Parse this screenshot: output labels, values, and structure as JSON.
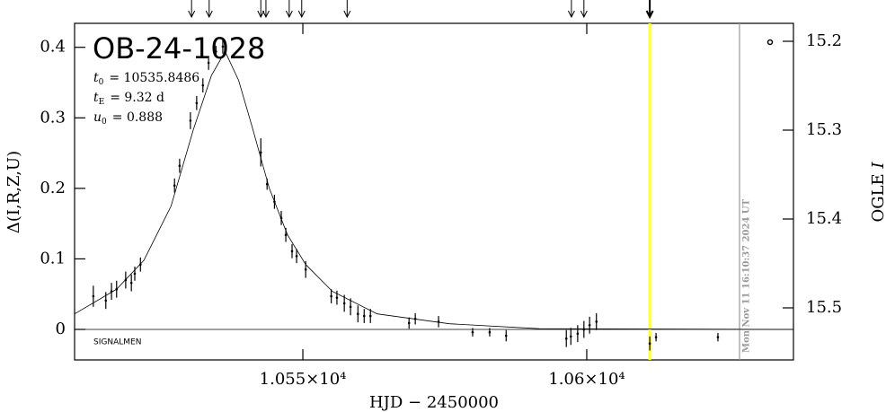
{
  "chart_data": {
    "type": "scatter",
    "title": "OB-24-1028",
    "params": [
      {
        "symbol": "t",
        "subscript": "0",
        "value": "= 10535.8486"
      },
      {
        "symbol": "t",
        "subscript": "E",
        "value": "= 9.32 d"
      },
      {
        "symbol": "u",
        "subscript": "0",
        "value": "= 0.888"
      }
    ],
    "note": "SIGNALMEN",
    "timestamp": "Mon Nov 11 16:10:37 2024 UT",
    "x_label": "HJD − 2450000",
    "y_label": "Δ(I,R,Z,U)",
    "y2_label": "OGLE",
    "y2_label_italic": "I",
    "xlim": [
      10509.8,
      10636.4
    ],
    "ylim": [
      -0.0433,
      0.434
    ],
    "y2lim": [
      15.5586,
      15.1798
    ],
    "xticks": [
      {
        "value": 10550,
        "label": "1.055×10⁴"
      },
      {
        "value": 10600,
        "label": "1.06×10⁴"
      }
    ],
    "yticks": [
      0,
      0.1,
      0.2,
      0.3,
      0.4
    ],
    "y2ticks": [
      15.2,
      15.3,
      15.4,
      15.5
    ],
    "highlight_x": 10611.1,
    "highlight_color": "#ffff33",
    "now_x": 10626.9,
    "now_color": "#999999",
    "arrows_x": [
      10530.4,
      10533.5,
      10542.6,
      10543.5,
      10547.6,
      10549.8,
      10557.8,
      10597.3,
      10599.5,
      10611.1
    ],
    "series": [
      {
        "style": "errorbar",
        "color": "#000000",
        "x": [
          10513.1,
          10515.3,
          10516.3,
          10517.2,
          10518.8,
          10519.8,
          10520.4,
          10521.4,
          10527.4,
          10528.3,
          10530.2,
          10531.3,
          10532.4,
          10533.4,
          10534.7,
          10535.9,
          10542.6,
          10543.7,
          10545,
          10546.2,
          10547,
          10548.1,
          10548.9,
          10550.5,
          10555,
          10556,
          10557.3,
          10558.4,
          10559.7,
          10560.8,
          10561.9,
          10568.7,
          10569.8,
          10573.9,
          10579.9,
          10582.9,
          10585.8,
          10596.4,
          10597.2,
          10598.4,
          10599.5,
          10600.5,
          10601.7,
          10611.1,
          10612.2,
          10623.1
        ],
        "values": [
          0.047,
          0.041,
          0.054,
          0.057,
          0.07,
          0.066,
          0.079,
          0.092,
          0.204,
          0.232,
          0.296,
          0.321,
          0.346,
          0.378,
          0.394,
          0.401,
          0.251,
          0.206,
          0.181,
          0.158,
          0.134,
          0.111,
          0.104,
          0.085,
          0.047,
          0.045,
          0.037,
          0.032,
          0.022,
          0.019,
          0.019,
          0.009,
          0.015,
          0.011,
          -0.004,
          -0.004,
          -0.009,
          -0.013,
          -0.01,
          -0.006,
          0,
          0.006,
          0.011,
          -0.02,
          -0.011,
          -0.011
        ],
        "errors": [
          0.015,
          0.012,
          0.012,
          0.012,
          0.012,
          0.012,
          0.01,
          0.01,
          0.01,
          0.01,
          0.012,
          0.01,
          0.01,
          0.01,
          0.008,
          0.01,
          0.02,
          0.008,
          0.01,
          0.01,
          0.01,
          0.01,
          0.01,
          0.012,
          0.01,
          0.01,
          0.012,
          0.012,
          0.012,
          0.01,
          0.01,
          0.008,
          0.008,
          0.008,
          0.006,
          0.006,
          0.008,
          0.012,
          0.012,
          0.012,
          0.012,
          0.012,
          0.012,
          0.01,
          0.006,
          0.006
        ]
      },
      {
        "style": "line",
        "color": "#000000",
        "x": [
          10509.8,
          10517.2,
          10522,
          10526.8,
          10530.7,
          10533.9,
          10536.3,
          10538.7,
          10541,
          10544.1,
          10547.3,
          10550.5,
          10555.2,
          10563.1,
          10575.8,
          10591.6,
          10636.4
        ],
        "values": [
          0.022,
          0.057,
          0.098,
          0.175,
          0.283,
          0.36,
          0.394,
          0.353,
          0.289,
          0.2,
          0.134,
          0.092,
          0.054,
          0.022,
          0.008,
          0.001,
          0
        ]
      }
    ]
  }
}
